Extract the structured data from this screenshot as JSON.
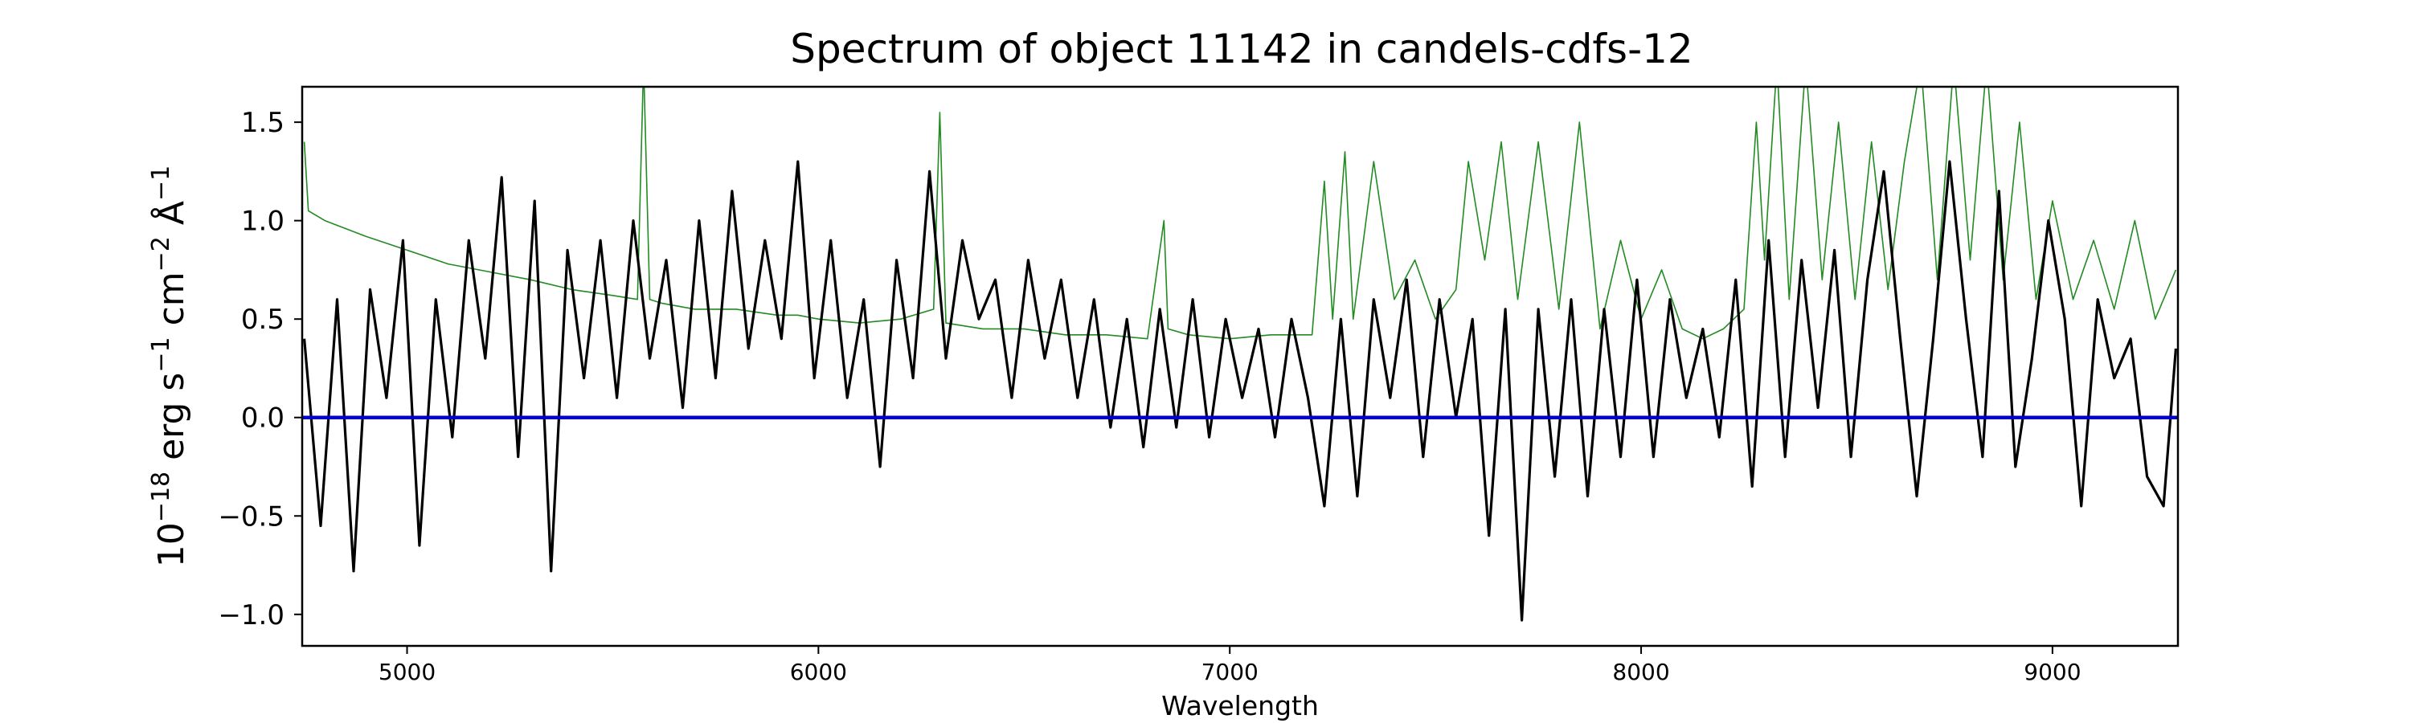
{
  "chart_data": {
    "type": "line",
    "title": "Spectrum of object 11142 in candels-cdfs-12",
    "xlabel": "Wavelength",
    "ylabel_base": "10",
    "ylabel_exp": "−18",
    "ylabel_unit_1": " erg s",
    "ylabel_exp_2": "−1",
    "ylabel_unit_2": " cm",
    "ylabel_exp_3": "−2",
    "ylabel_unit_3": " Å",
    "ylabel_exp_4": "−1",
    "xlim": [
      4745,
      9305
    ],
    "ylim": [
      -1.16,
      1.68
    ],
    "xticks": [
      5000,
      6000,
      7000,
      8000,
      9000
    ],
    "xtick_labels": [
      "5000",
      "6000",
      "7000",
      "8000",
      "9000"
    ],
    "yticks": [
      -1.0,
      -0.5,
      0.0,
      0.5,
      1.0,
      1.5
    ],
    "ytick_labels": [
      "−1.0",
      "−0.5",
      "0.0",
      "0.5",
      "1.0",
      "1.5"
    ],
    "grid": false,
    "legend": "none",
    "series": [
      {
        "color": "#000000",
        "x": [
          4750,
          4790,
          4830,
          4870,
          4910,
          4950,
          4990,
          5030,
          5070,
          5110,
          5150,
          5190,
          5230,
          5270,
          5310,
          5350,
          5390,
          5430,
          5470,
          5510,
          5550,
          5590,
          5630,
          5670,
          5710,
          5750,
          5790,
          5830,
          5870,
          5910,
          5950,
          5990,
          6030,
          6070,
          6110,
          6150,
          6190,
          6230,
          6270,
          6310,
          6350,
          6390,
          6430,
          6470,
          6510,
          6550,
          6590,
          6630,
          6670,
          6710,
          6750,
          6790,
          6830,
          6870,
          6910,
          6950,
          6990,
          7030,
          7070,
          7110,
          7150,
          7190,
          7230,
          7270,
          7310,
          7350,
          7390,
          7430,
          7470,
          7510,
          7550,
          7590,
          7630,
          7670,
          7710,
          7750,
          7790,
          7830,
          7870,
          7910,
          7950,
          7990,
          8030,
          8070,
          8110,
          8150,
          8190,
          8230,
          8270,
          8310,
          8350,
          8390,
          8430,
          8470,
          8510,
          8550,
          8590,
          8630,
          8670,
          8710,
          8750,
          8790,
          8830,
          8870,
          8910,
          8950,
          8990,
          9030,
          9070,
          9110,
          9150,
          9190,
          9230,
          9270,
          9300
        ],
        "y": [
          0.4,
          -0.55,
          0.6,
          -0.78,
          0.65,
          0.1,
          0.9,
          -0.65,
          0.6,
          -0.1,
          0.9,
          0.3,
          1.22,
          -0.2,
          1.1,
          -0.78,
          0.85,
          0.2,
          0.9,
          0.1,
          1.0,
          0.3,
          0.8,
          0.05,
          1.0,
          0.2,
          1.15,
          0.35,
          0.9,
          0.4,
          1.3,
          0.2,
          0.9,
          0.1,
          0.6,
          -0.25,
          0.8,
          0.2,
          1.25,
          0.3,
          0.9,
          0.5,
          0.7,
          0.1,
          0.8,
          0.3,
          0.7,
          0.1,
          0.6,
          -0.05,
          0.5,
          -0.15,
          0.55,
          -0.05,
          0.6,
          -0.1,
          0.5,
          0.1,
          0.45,
          -0.1,
          0.5,
          0.1,
          -0.45,
          0.5,
          -0.4,
          0.6,
          0.1,
          0.7,
          -0.2,
          0.6,
          0.0,
          0.5,
          -0.6,
          0.55,
          -1.03,
          0.55,
          -0.3,
          0.6,
          -0.4,
          0.55,
          -0.2,
          0.7,
          -0.2,
          0.6,
          0.1,
          0.45,
          -0.1,
          0.7,
          -0.35,
          0.9,
          -0.2,
          0.8,
          0.05,
          0.85,
          -0.2,
          0.7,
          1.25,
          0.4,
          -0.4,
          0.4,
          1.3,
          0.5,
          -0.2,
          1.15,
          -0.25,
          0.3,
          1.0,
          0.5,
          -0.45,
          0.6,
          0.2,
          0.4,
          -0.3,
          -0.45,
          0.35
        ]
      },
      {
        "color": "#228B22",
        "x": [
          4750,
          4760,
          4800,
          4900,
          5000,
          5100,
          5200,
          5300,
          5400,
          5500,
          5560,
          5575,
          5590,
          5620,
          5700,
          5800,
          5900,
          5950,
          6000,
          6100,
          6200,
          6280,
          6295,
          6310,
          6400,
          6500,
          6600,
          6700,
          6800,
          6840,
          6850,
          6900,
          7000,
          7100,
          7200,
          7230,
          7250,
          7280,
          7300,
          7350,
          7400,
          7450,
          7500,
          7550,
          7580,
          7620,
          7660,
          7700,
          7750,
          7800,
          7850,
          7900,
          7950,
          8000,
          8050,
          8100,
          8150,
          8200,
          8250,
          8280,
          8300,
          8330,
          8360,
          8400,
          8440,
          8480,
          8520,
          8560,
          8600,
          8640,
          8680,
          8720,
          8760,
          8800,
          8840,
          8880,
          8920,
          8960,
          9000,
          9050,
          9100,
          9150,
          9200,
          9250,
          9300
        ],
        "y": [
          1.4,
          1.05,
          1.0,
          0.92,
          0.85,
          0.78,
          0.74,
          0.7,
          0.65,
          0.62,
          0.6,
          1.8,
          0.6,
          0.58,
          0.55,
          0.55,
          0.52,
          0.52,
          0.5,
          0.48,
          0.5,
          0.55,
          1.55,
          0.48,
          0.45,
          0.45,
          0.42,
          0.42,
          0.4,
          1.0,
          0.45,
          0.42,
          0.4,
          0.42,
          0.42,
          1.2,
          0.5,
          1.35,
          0.5,
          1.3,
          0.6,
          0.8,
          0.5,
          0.65,
          1.3,
          0.8,
          1.4,
          0.6,
          1.4,
          0.55,
          1.5,
          0.45,
          0.9,
          0.5,
          0.75,
          0.45,
          0.4,
          0.45,
          0.55,
          1.5,
          0.8,
          1.8,
          0.6,
          1.8,
          0.7,
          1.5,
          0.6,
          1.4,
          0.65,
          1.3,
          1.8,
          0.7,
          1.8,
          0.8,
          1.8,
          0.7,
          1.5,
          0.6,
          1.1,
          0.6,
          0.9,
          0.55,
          1.0,
          0.5,
          0.75
        ]
      },
      {
        "color": "#0000cc",
        "x": [
          4745,
          9305
        ],
        "y": [
          0.0,
          0.0
        ]
      }
    ]
  }
}
